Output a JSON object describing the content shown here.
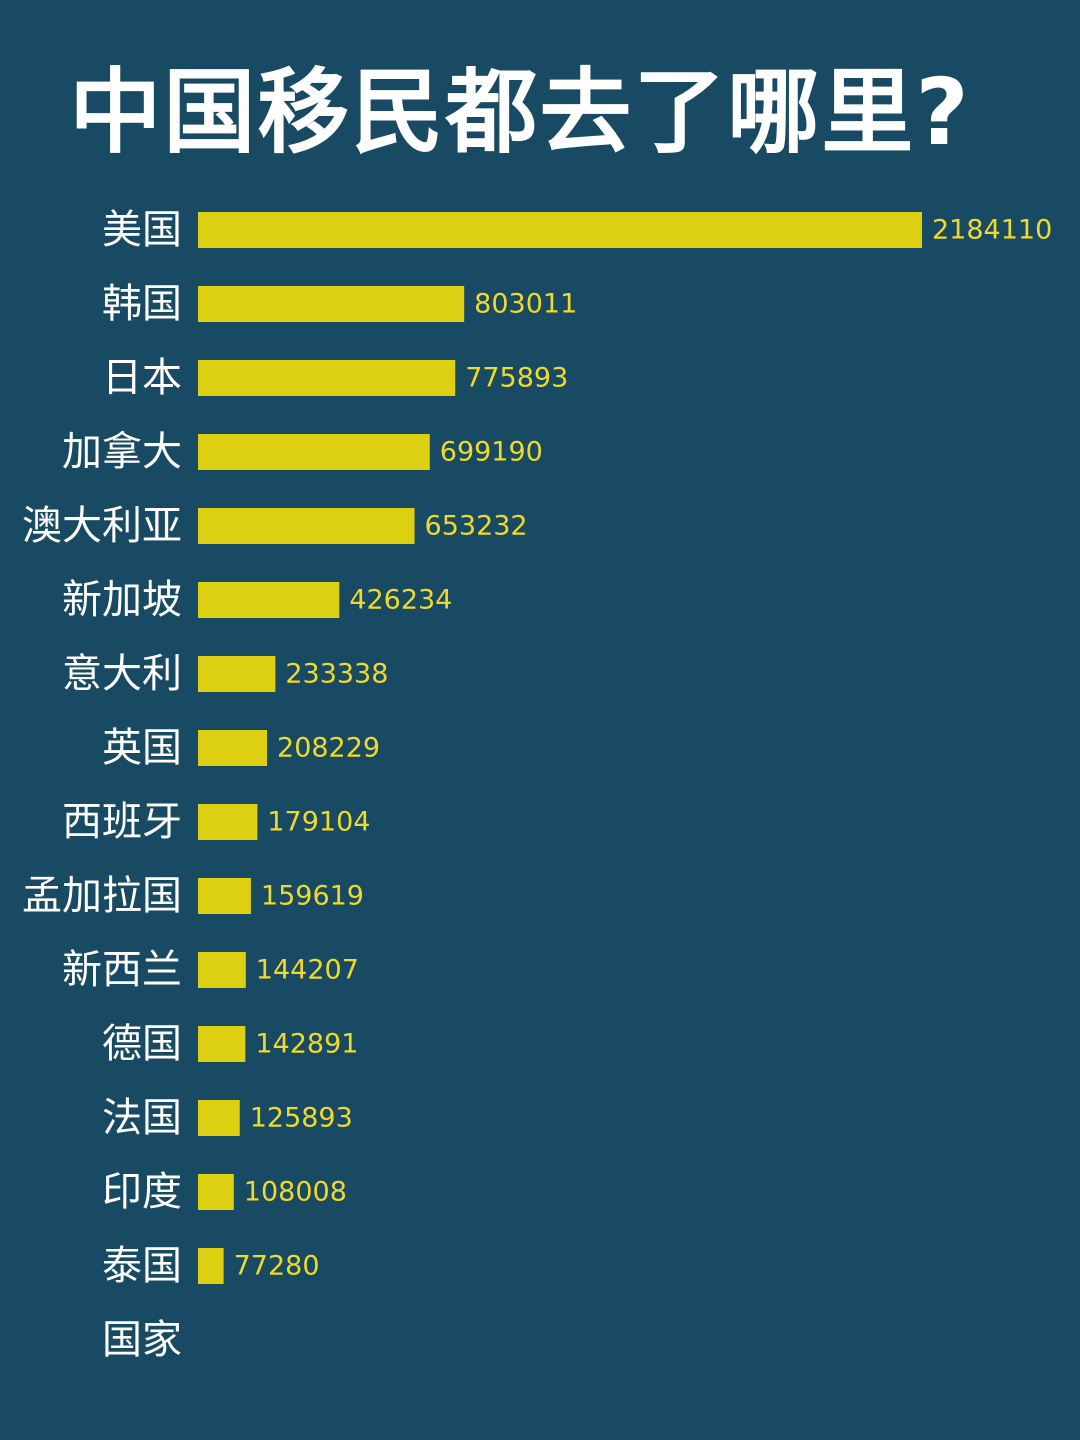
{
  "chart_data": {
    "type": "bar",
    "orientation": "horizontal",
    "title": "中国移民都去了哪里?",
    "ylabel": "国家",
    "categories": [
      "美国",
      "韩国",
      "日本",
      "加拿大",
      "澳大利亚",
      "新加坡",
      "意大利",
      "英国",
      "西班牙",
      "孟加拉国",
      "新西兰",
      "德国",
      "法国",
      "印度",
      "泰国"
    ],
    "values": [
      2184110,
      803011,
      775893,
      699190,
      653232,
      426234,
      233338,
      208229,
      179104,
      159619,
      144207,
      142891,
      125893,
      108008,
      77280
    ],
    "value_labels": [
      "2184110",
      "803011",
      "775893",
      "699190",
      "653232",
      "426234",
      "233338",
      "208229",
      "179104",
      "159619",
      "144207",
      "142891",
      "125893",
      "108008",
      "77280"
    ],
    "xlim": [
      0,
      2184110
    ],
    "grid": false,
    "legend": "none",
    "colors": {
      "background": "#184a64",
      "bar": "#ddcf12",
      "value_label": "#f1d928",
      "text": "#ffffff"
    }
  }
}
